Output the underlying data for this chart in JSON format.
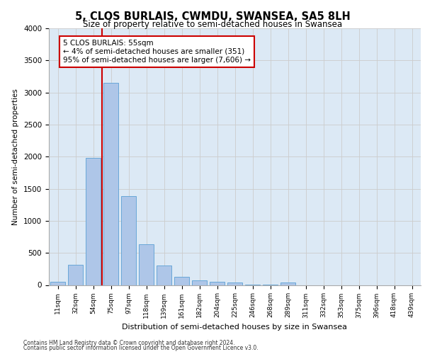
{
  "title": "5, CLOS BURLAIS, CWMDU, SWANSEA, SA5 8LH",
  "subtitle": "Size of property relative to semi-detached houses in Swansea",
  "xlabel": "Distribution of semi-detached houses by size in Swansea",
  "ylabel": "Number of semi-detached properties",
  "categories": [
    "11sqm",
    "32sqm",
    "54sqm",
    "75sqm",
    "97sqm",
    "118sqm",
    "139sqm",
    "161sqm",
    "182sqm",
    "204sqm",
    "225sqm",
    "246sqm",
    "268sqm",
    "289sqm",
    "311sqm",
    "332sqm",
    "353sqm",
    "375sqm",
    "396sqm",
    "418sqm",
    "439sqm"
  ],
  "values": [
    50,
    320,
    1980,
    3150,
    1390,
    640,
    300,
    130,
    70,
    50,
    35,
    10,
    5,
    35,
    0,
    0,
    0,
    0,
    0,
    0,
    0
  ],
  "bar_color": "#aec6e8",
  "bar_edge_color": "#5a9fd4",
  "vline_pos": 2.5,
  "annotation_text": "5 CLOS BURLAIS: 55sqm\n← 4% of semi-detached houses are smaller (351)\n95% of semi-detached houses are larger (7,606) →",
  "annotation_box_color": "#ffffff",
  "annotation_box_edge_color": "#cc0000",
  "vline_color": "#cc0000",
  "ylim": [
    0,
    4000
  ],
  "yticks": [
    0,
    500,
    1000,
    1500,
    2000,
    2500,
    3000,
    3500,
    4000
  ],
  "grid_color": "#cccccc",
  "bg_color": "#dce9f5",
  "footer_line1": "Contains HM Land Registry data © Crown copyright and database right 2024.",
  "footer_line2": "Contains public sector information licensed under the Open Government Licence v3.0."
}
